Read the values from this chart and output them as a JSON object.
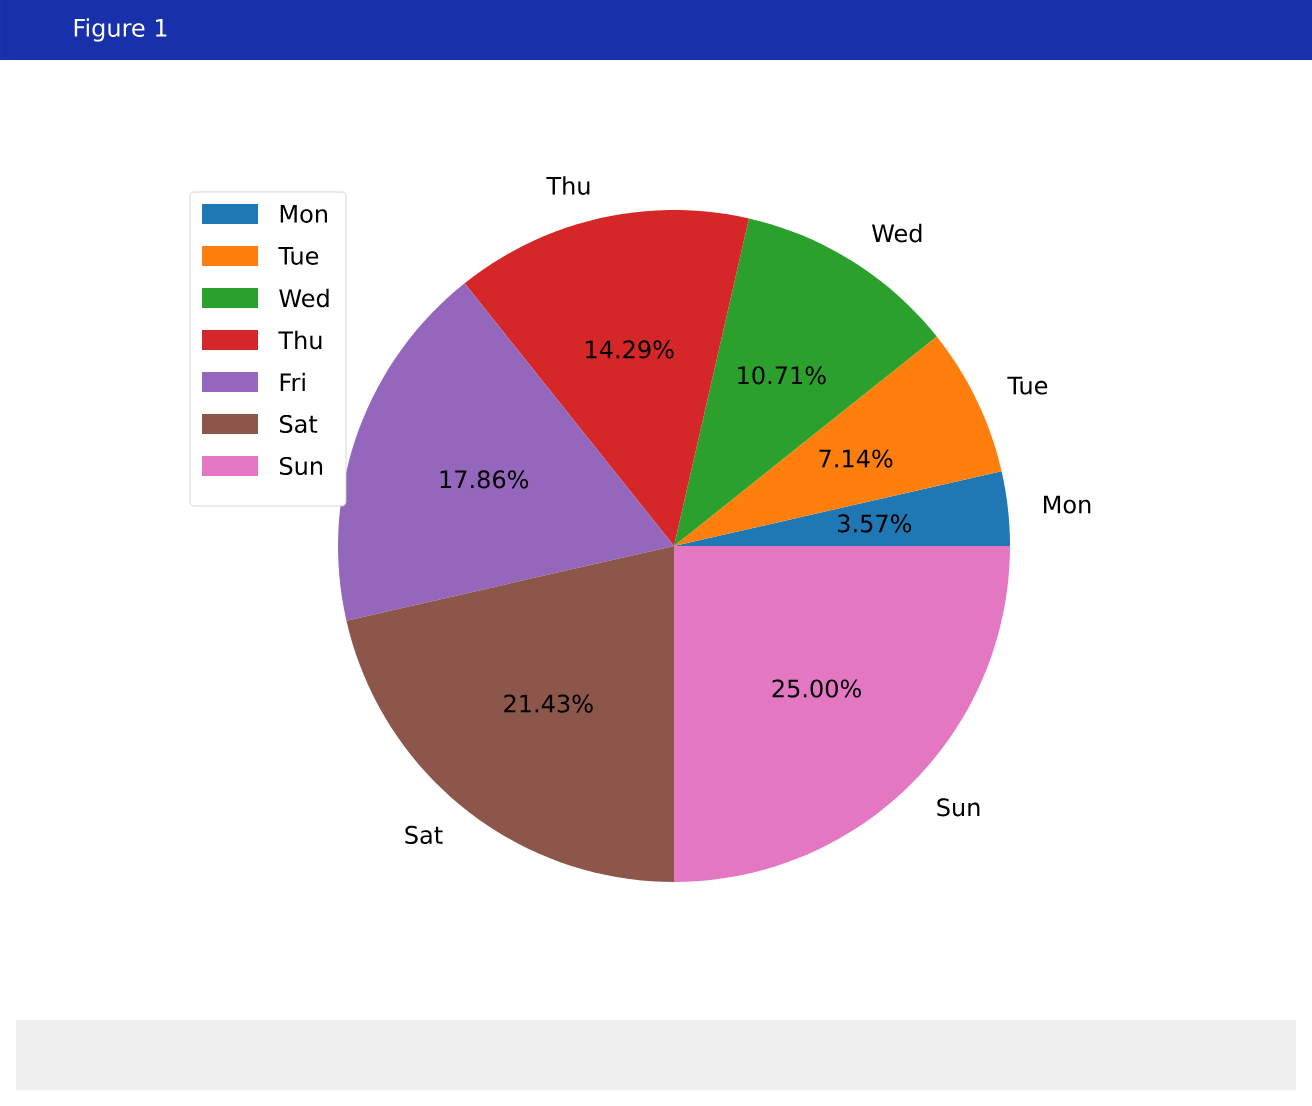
{
  "chart_data": {
    "type": "pie",
    "categories": [
      "Mon",
      "Tue",
      "Wed",
      "Thu",
      "Fri",
      "Sat",
      "Sun"
    ],
    "values": [
      3.57,
      7.14,
      10.71,
      14.29,
      17.86,
      21.43,
      25.0
    ],
    "value_labels": [
      "3.57%",
      "7.14%",
      "10.71%",
      "14.29%",
      "17.86%",
      "21.43%",
      "25.00%"
    ],
    "colors": [
      "#1f77b4",
      "#ff7f0e",
      "#2ca02c",
      "#d62728",
      "#9467bd",
      "#8c564b",
      "#e377c2"
    ],
    "legend": "top left",
    "annotations": [
      "Figure 1"
    ]
  }
}
